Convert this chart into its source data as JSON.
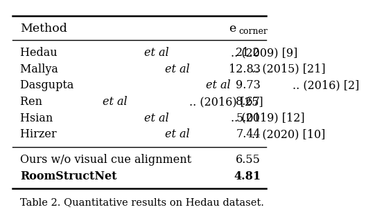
{
  "title": "Table 2. Quantitative results on Hedau dataset.",
  "col_header_method": "Method",
  "col_header_metric": "e",
  "col_header_metric_sub": "corner",
  "rows_group1": [
    {
      "method_plain": "Hedau ",
      "method_italic": "et al",
      "method_rest": ".. (2009) [9]",
      "value": "21.2"
    },
    {
      "method_plain": "Mallya ",
      "method_italic": "et al",
      "method_rest": ".. (2015) [21]",
      "value": "12.83"
    },
    {
      "method_plain": "Dasgupta ",
      "method_italic": "et al",
      "method_rest": ".. (2016) [2]",
      "value": "9.73"
    },
    {
      "method_plain": "Ren ",
      "method_italic": "et al",
      "method_rest": ".. (2016) [25]",
      "value": "8.67"
    },
    {
      "method_plain": "Hsian ",
      "method_italic": "et al",
      "method_rest": ".. (2019) [12]",
      "value": "5.01"
    },
    {
      "method_plain": "Hirzer ",
      "method_italic": "et al",
      "method_rest": ".. (2020) [10]",
      "value": "7.44"
    }
  ],
  "rows_group2": [
    {
      "method": "Ours w/o visual cue alignment",
      "value": "6.55",
      "bold": false
    },
    {
      "method": "RoomStructNet",
      "value": "4.81",
      "bold": true
    }
  ],
  "bg_color": "#ffffff",
  "text_color": "#000000",
  "font_size": 11.5,
  "header_font_size": 12.5,
  "caption_font_size": 10.5
}
